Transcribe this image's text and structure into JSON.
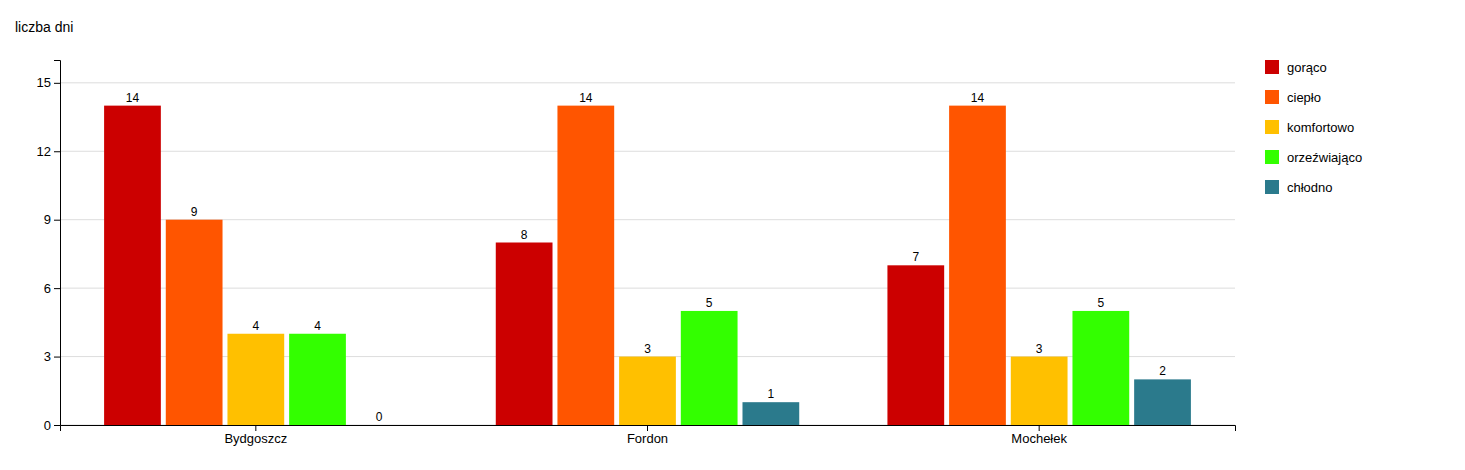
{
  "chart_data": {
    "type": "bar",
    "ylabel": "liczba dni",
    "categories": [
      "Bydgoszcz",
      "Fordon",
      "Mochełek"
    ],
    "series": [
      {
        "name": "gorąco",
        "color": "#CC0000",
        "values": [
          14,
          8,
          7
        ]
      },
      {
        "name": "ciepło",
        "color": "#FF5500",
        "values": [
          9,
          14,
          14
        ]
      },
      {
        "name": "komfortowo",
        "color": "#FFC000",
        "values": [
          4,
          3,
          3
        ]
      },
      {
        "name": "orzeźwiająco",
        "color": "#33FF00",
        "values": [
          4,
          5,
          5
        ]
      },
      {
        "name": "chłodno",
        "color": "#2B7A8C",
        "values": [
          0,
          1,
          2
        ]
      }
    ],
    "ylim": [
      0,
      16
    ],
    "yticks": [
      0,
      3,
      6,
      9,
      12,
      15
    ],
    "grid": true,
    "legend": "right",
    "data_labels": true
  }
}
